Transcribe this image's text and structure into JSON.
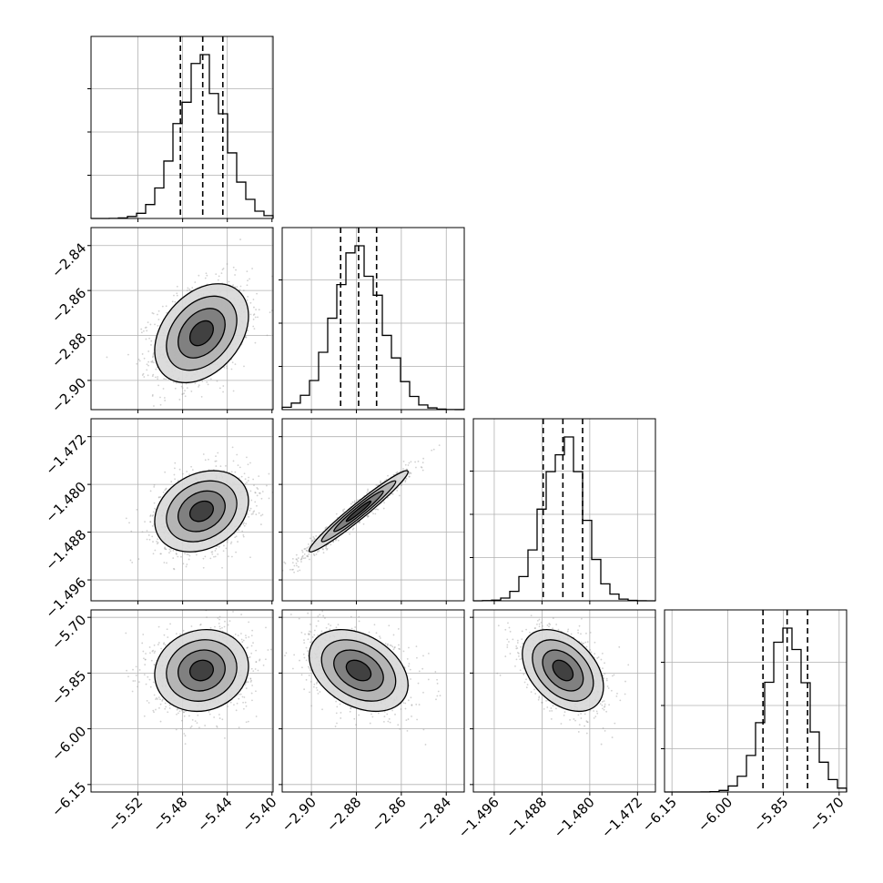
{
  "chart_data": {
    "type": "corner",
    "parameters": [
      {
        "ticks": [
          -5.52,
          -5.48,
          -5.44,
          -5.4
        ],
        "tick_labels": [
          "−5.52",
          "−5.48",
          "−5.44",
          "−5.40"
        ],
        "range": [
          -5.562,
          -5.399
        ],
        "mean": -5.463,
        "sd": 0.021,
        "quantiles": [
          -5.482,
          -5.462,
          -5.444
        ]
      },
      {
        "ticks": [
          -2.9,
          -2.88,
          -2.86,
          -2.84
        ],
        "tick_labels": [
          "−2.90",
          "−2.88",
          "−2.86",
          "−2.84"
        ],
        "range": [
          -2.913,
          -2.832
        ],
        "mean": -2.879,
        "sd": 0.011,
        "quantiles": [
          -2.887,
          -2.879,
          -2.871
        ]
      },
      {
        "ticks": [
          -1.496,
          -1.488,
          -1.48,
          -1.472
        ],
        "tick_labels": [
          "−1.496",
          "−1.488",
          "−1.480",
          "−1.472"
        ],
        "range": [
          -1.4995,
          -1.469
        ],
        "mean": -1.4845,
        "sd": 0.0034,
        "quantiles": [
          -1.4878,
          -1.4845,
          -1.4812
        ]
      },
      {
        "ticks": [
          -6.15,
          -6.0,
          -5.85,
          -5.7
        ],
        "tick_labels": [
          "−6.15",
          "−6.00",
          "−5.85",
          "−5.70"
        ],
        "range": [
          -6.17,
          -5.68
        ],
        "mean": -5.843,
        "sd": 0.055,
        "quantiles": [
          -5.905,
          -5.84,
          -5.785
        ]
      }
    ],
    "correlations": [
      [
        1.0,
        0.35,
        0.25,
        0.1
      ],
      [
        0.35,
        1.0,
        0.97,
        -0.35
      ],
      [
        0.25,
        0.97,
        1.0,
        -0.4
      ],
      [
        0.1,
        -0.35,
        -0.4,
        1.0
      ]
    ],
    "histogram_bins": 20,
    "contour_levels_sigma": [
      0.5,
      1.0,
      1.5,
      2.0
    ],
    "grid": true,
    "colors": {
      "hist": "#000000",
      "points": "#9a9a9a",
      "density": "#000000",
      "grid": "#b0b0b0"
    }
  }
}
